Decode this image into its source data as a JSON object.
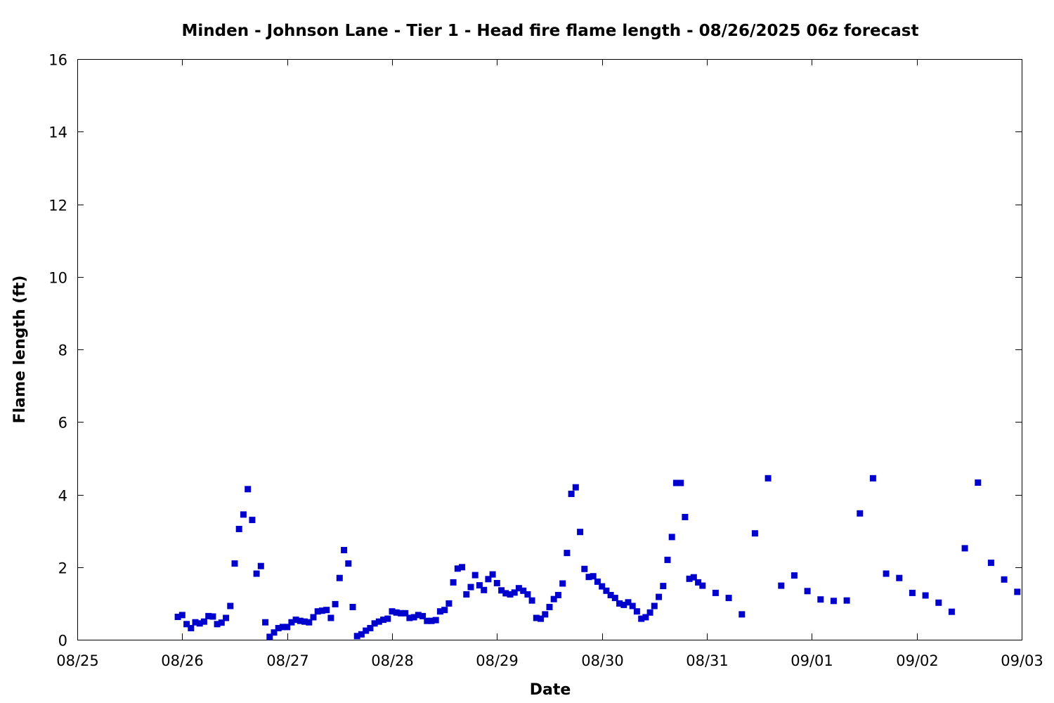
{
  "chart_data": {
    "type": "scatter",
    "title": "Minden - Johnson Lane - Tier 1 - Head fire flame length - 08/26/2025 06z forecast",
    "xlabel": "Date",
    "ylabel": "Flame length (ft)",
    "xlim": [
      "08/25",
      "09/03"
    ],
    "ylim": [
      0,
      16
    ],
    "x_ticks": [
      "08/25",
      "08/26",
      "08/27",
      "08/28",
      "08/29",
      "08/30",
      "08/31",
      "09/01",
      "09/02",
      "09/03"
    ],
    "y_ticks": [
      "0",
      "2",
      "4",
      "6",
      "8",
      "10",
      "12",
      "14",
      "16"
    ],
    "grid": false,
    "marker_color": "#0000cc",
    "series": [
      {
        "x": [
          "08/25 23:00",
          "08/26 00:00",
          "08/26 01:00",
          "08/26 02:00",
          "08/26 03:00",
          "08/26 04:00",
          "08/26 05:00",
          "08/26 06:00",
          "08/26 07:00",
          "08/26 08:00",
          "08/26 09:00",
          "08/26 10:00",
          "08/26 11:00",
          "08/26 12:00",
          "08/26 13:00",
          "08/26 14:00",
          "08/26 15:00",
          "08/26 16:00",
          "08/26 17:00",
          "08/26 18:00",
          "08/26 19:00",
          "08/26 20:00",
          "08/26 21:00",
          "08/26 22:00",
          "08/26 23:00",
          "08/27 00:00",
          "08/27 01:00",
          "08/27 02:00",
          "08/27 03:00",
          "08/27 04:00",
          "08/27 05:00",
          "08/27 06:00",
          "08/27 07:00",
          "08/27 08:00",
          "08/27 09:00",
          "08/27 10:00",
          "08/27 11:00",
          "08/27 12:00",
          "08/27 13:00",
          "08/27 14:00",
          "08/27 15:00",
          "08/27 16:00",
          "08/27 17:00",
          "08/27 18:00",
          "08/27 19:00",
          "08/27 20:00",
          "08/27 21:00",
          "08/27 22:00",
          "08/27 23:00",
          "08/28 00:00",
          "08/28 01:00",
          "08/28 02:00",
          "08/28 03:00",
          "08/28 04:00",
          "08/28 05:00",
          "08/28 06:00",
          "08/28 07:00",
          "08/28 08:00",
          "08/28 09:00",
          "08/28 10:00",
          "08/28 11:00",
          "08/28 12:00",
          "08/28 13:00",
          "08/28 14:00",
          "08/28 15:00",
          "08/28 16:00",
          "08/28 17:00",
          "08/28 18:00",
          "08/28 19:00",
          "08/28 20:00",
          "08/28 21:00",
          "08/28 22:00",
          "08/28 23:00",
          "08/29 00:00",
          "08/29 01:00",
          "08/29 02:00",
          "08/29 03:00",
          "08/29 04:00",
          "08/29 05:00",
          "08/29 06:00",
          "08/29 07:00",
          "08/29 08:00",
          "08/29 09:00",
          "08/29 10:00",
          "08/29 11:00",
          "08/29 12:00",
          "08/29 13:00",
          "08/29 14:00",
          "08/29 15:00",
          "08/29 16:00",
          "08/29 17:00",
          "08/29 18:00",
          "08/29 19:00",
          "08/29 20:00",
          "08/29 21:00",
          "08/29 22:00",
          "08/29 23:00",
          "08/30 00:00",
          "08/30 01:00",
          "08/30 02:00",
          "08/30 03:00",
          "08/30 04:00",
          "08/30 05:00",
          "08/30 06:00",
          "08/30 07:00",
          "08/30 08:00",
          "08/30 09:00",
          "08/30 10:00",
          "08/30 11:00",
          "08/30 12:00",
          "08/30 13:00",
          "08/30 14:00",
          "08/30 15:00",
          "08/30 16:00",
          "08/30 17:00",
          "08/30 18:00",
          "08/30 19:00",
          "08/30 20:00",
          "08/30 21:00",
          "08/30 22:00",
          "08/30 23:00",
          "08/31 02:00",
          "08/31 05:00",
          "08/31 08:00",
          "08/31 11:00",
          "08/31 14:00",
          "08/31 17:00",
          "08/31 20:00",
          "08/31 23:00",
          "09/01 02:00",
          "09/01 05:00",
          "09/01 08:00",
          "09/01 11:00",
          "09/01 14:00",
          "09/01 17:00",
          "09/01 20:00",
          "09/01 23:00",
          "09/02 02:00",
          "09/02 05:00",
          "09/02 08:00",
          "09/02 11:00",
          "09/02 14:00",
          "09/02 17:00",
          "09/02 20:00",
          "09/02 23:00"
        ],
        "y": [
          0.63,
          0.68,
          0.43,
          0.32,
          0.48,
          0.45,
          0.5,
          0.65,
          0.64,
          0.43,
          0.47,
          0.6,
          0.93,
          2.1,
          3.05,
          3.45,
          4.15,
          3.3,
          1.82,
          2.03,
          0.48,
          0.08,
          0.2,
          0.32,
          0.35,
          0.35,
          0.48,
          0.55,
          0.52,
          0.5,
          0.48,
          0.62,
          0.78,
          0.8,
          0.82,
          0.6,
          0.98,
          1.7,
          2.47,
          2.1,
          0.9,
          0.1,
          0.15,
          0.25,
          0.32,
          0.45,
          0.5,
          0.55,
          0.58,
          0.78,
          0.75,
          0.73,
          0.73,
          0.6,
          0.62,
          0.68,
          0.65,
          0.52,
          0.52,
          0.54,
          0.78,
          0.82,
          1.0,
          1.58,
          1.96,
          2.0,
          1.25,
          1.45,
          1.78,
          1.5,
          1.37,
          1.67,
          1.8,
          1.56,
          1.36,
          1.28,
          1.25,
          1.3,
          1.42,
          1.35,
          1.25,
          1.08,
          0.6,
          0.58,
          0.7,
          0.9,
          1.12,
          1.23,
          1.55,
          2.39,
          4.02,
          4.2,
          2.97,
          1.95,
          1.73,
          1.75,
          1.6,
          1.47,
          1.35,
          1.23,
          1.15,
          1.0,
          0.96,
          1.03,
          0.93,
          0.78,
          0.58,
          0.62,
          0.75,
          0.93,
          1.18,
          1.48,
          2.2,
          2.83,
          4.32,
          4.32,
          3.38,
          1.68,
          1.72,
          1.58,
          1.49,
          1.29,
          1.15,
          0.7,
          2.93,
          4.45,
          1.49,
          1.77,
          1.34,
          1.11,
          1.07,
          1.08,
          3.48,
          4.45,
          1.82,
          1.7,
          1.29,
          1.22,
          1.02,
          0.77,
          2.52,
          4.33,
          2.12,
          1.66,
          1.32
        ]
      }
    ]
  }
}
